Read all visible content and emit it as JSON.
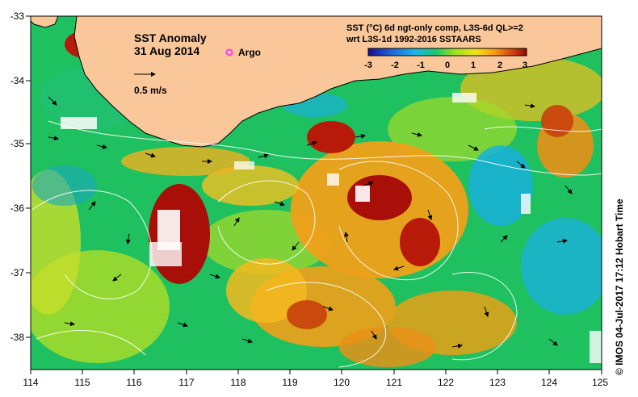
{
  "map": {
    "title": "SST Anomaly",
    "date": "31 Aug 2014",
    "argo_label": "Argo",
    "velocity_scale_label": "0.5 m/s",
    "product_line1": "SST (°C) 6d ngt-only comp, L3S-6d QL>=2",
    "product_line2": "wrt L3S-1d 1992-2016 SSTAARS",
    "credit": "© IMOS 04-Jul-2017 17:12 Hobart Time"
  },
  "axes": {
    "lon_ticks": [
      "114",
      "115",
      "116",
      "117",
      "118",
      "119",
      "120",
      "121",
      "122",
      "123",
      "124",
      "125"
    ],
    "lat_ticks": [
      "-33",
      "-34",
      "-35",
      "-36",
      "-37",
      "-38"
    ]
  },
  "colorbar": {
    "ticks": [
      "-3",
      "-2",
      "-1",
      "0",
      "1",
      "2",
      "3"
    ],
    "colors": [
      "#1a0f8c",
      "#1f5fd8",
      "#19b6e6",
      "#1ec86c",
      "#9fe21e",
      "#f3e21a",
      "#f59a14",
      "#d8480f",
      "#8c0f05"
    ]
  },
  "colors": {
    "land": "#f9c79a",
    "ocean_base": "#1fc060",
    "warm": "#f0a018",
    "hot": "#a80f08",
    "cool": "#19b0dc",
    "cloud": "#ffffff",
    "argo": "#ff33ff"
  },
  "icons": [
    "argo-float-icon",
    "velocity-arrow-icon"
  ]
}
